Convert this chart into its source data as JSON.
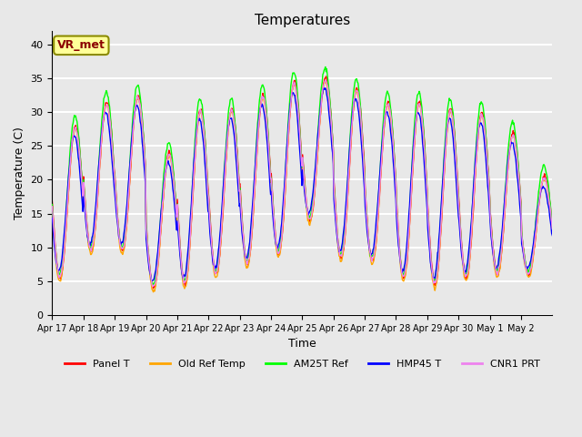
{
  "title": "Temperatures",
  "xlabel": "Time",
  "ylabel": "Temperature (C)",
  "ylim": [
    0,
    42
  ],
  "yticks": [
    0,
    5,
    10,
    15,
    20,
    25,
    30,
    35,
    40
  ],
  "background_color": "#e8e8e8",
  "plot_bg_color": "#e8e8e8",
  "grid_color": "white",
  "annotation_text": "VR_met",
  "annotation_color": "#8B0000",
  "annotation_bg": "#FFFF99",
  "annotation_border": "#8B8B00",
  "series_colors": [
    "red",
    "orange",
    "lime",
    "blue",
    "violet"
  ],
  "series_labels": [
    "Panel T",
    "Old Ref Temp",
    "AM25T Ref",
    "HMP45 T",
    "CNR1 PRT"
  ],
  "xtick_labels": [
    "Apr 17",
    "Apr 18",
    "Apr 19",
    "Apr 20",
    "Apr 21",
    "Apr 22",
    "Apr 23",
    "Apr 24",
    "Apr 25",
    "Apr 26",
    "Apr 27",
    "Apr 28",
    "Apr 29",
    "Apr 30",
    "May 1",
    "May 2"
  ],
  "n_days": 16,
  "pts_per_day": 48,
  "day_min_temps": [
    5.5,
    9.5,
    9.5,
    4.0,
    4.5,
    6.0,
    7.5,
    9.0,
    14.0,
    8.5,
    8.0,
    5.5,
    4.5,
    5.5,
    6.0,
    6.0
  ],
  "day_max_temps": [
    28.0,
    31.5,
    32.5,
    24.0,
    30.5,
    30.5,
    32.5,
    34.5,
    35.0,
    33.5,
    31.5,
    31.5,
    30.5,
    30.0,
    27.0,
    20.5
  ],
  "line_width": 1.0,
  "legend_ncol": 5,
  "offsets_min": [
    0,
    -0.5,
    0.5,
    1.0,
    0.2
  ],
  "offsets_max": [
    0,
    -0.5,
    1.5,
    -1.5,
    -0.3
  ],
  "phase_shifts": [
    0,
    0.01,
    0.02,
    0.04,
    0.01
  ]
}
